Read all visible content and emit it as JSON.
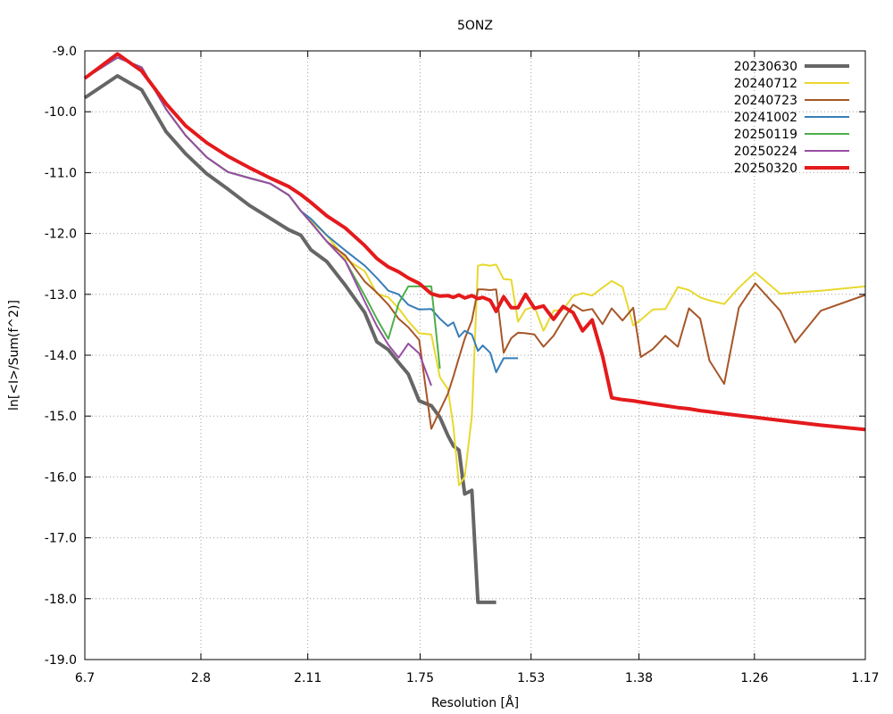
{
  "chart_data": {
    "type": "line",
    "title": "5ONZ",
    "xlabel": "Resolution [Å]",
    "ylabel": "ln[<I>/Sum(f^2)]",
    "x_unit": "1/d^2 (Å^-2)",
    "xlim": [
      0.0223,
      0.7305
    ],
    "ylim": [
      -19.0,
      -9.0
    ],
    "x_ticks": [
      {
        "label": "6.7",
        "value": 0.0223
      },
      {
        "label": "2.8",
        "value": 0.1276
      },
      {
        "label": "2.11",
        "value": 0.2246
      },
      {
        "label": "1.75",
        "value": 0.3265
      },
      {
        "label": "1.53",
        "value": 0.4272
      },
      {
        "label": "1.38",
        "value": 0.5251
      },
      {
        "label": "1.26",
        "value": 0.6299
      },
      {
        "label": "1.17",
        "value": 0.7305
      }
    ],
    "y_ticks": [
      "-9.0",
      "-10.0",
      "-11.0",
      "-12.0",
      "-13.0",
      "-14.0",
      "-15.0",
      "-16.0",
      "-17.0",
      "-18.0",
      "-19.0"
    ],
    "grid": true,
    "legend_position": "top-right",
    "series": [
      {
        "name": "20230630",
        "color": "#666666",
        "width": 4,
        "x": [
          0.0223,
          0.0519,
          0.0738,
          0.0961,
          0.1138,
          0.133,
          0.152,
          0.1716,
          0.1905,
          0.2074,
          0.2183,
          0.2275,
          0.2418,
          0.2587,
          0.2763,
          0.2873,
          0.2977,
          0.307,
          0.3158,
          0.3257,
          0.3367,
          0.3445,
          0.3518,
          0.3567,
          0.3618,
          0.367,
          0.3735,
          0.379,
          0.3834,
          0.3902,
          0.3955
        ],
        "values": [
          -9.77,
          -9.41,
          -9.64,
          -10.33,
          -10.69,
          -11.02,
          -11.27,
          -11.54,
          -11.75,
          -11.94,
          -12.03,
          -12.27,
          -12.46,
          -12.85,
          -13.3,
          -13.78,
          -13.91,
          -14.12,
          -14.31,
          -14.75,
          -14.83,
          -15.02,
          -15.32,
          -15.49,
          -15.56,
          -16.28,
          -16.22,
          -18.06,
          -18.06,
          -18.06,
          -18.06
        ]
      },
      {
        "name": "20240712",
        "color": "#e8d82f",
        "width": 2,
        "x": [
          0.0223,
          0.0519,
          0.0738,
          0.0961,
          0.1138,
          0.133,
          0.152,
          0.1716,
          0.1905,
          0.2074,
          0.2183,
          0.2275,
          0.2418,
          0.2587,
          0.2763,
          0.2873,
          0.2977,
          0.307,
          0.3158,
          0.3257,
          0.3367,
          0.3445,
          0.3518,
          0.3567,
          0.3618,
          0.367,
          0.3735,
          0.379,
          0.3834,
          0.3902,
          0.3955,
          0.4023,
          0.4092,
          0.4154,
          0.4222,
          0.4303,
          0.4385,
          0.4476,
          0.4563,
          0.4654,
          0.474,
          0.4826,
          0.492,
          0.5004,
          0.5102,
          0.5199,
          0.5268,
          0.5377,
          0.5491,
          0.5604,
          0.5705,
          0.5807,
          0.5891,
          0.6025,
          0.6158,
          0.6307,
          0.6533,
          0.6668,
          0.6901,
          0.7305
        ],
        "values": [
          -9.45,
          -9.11,
          -9.27,
          -9.96,
          -10.39,
          -10.75,
          -10.99,
          -11.09,
          -11.18,
          -11.37,
          -11.63,
          -11.79,
          -12.03,
          -12.41,
          -12.62,
          -12.99,
          -13.05,
          -13.23,
          -13.44,
          -13.64,
          -13.66,
          -14.36,
          -14.56,
          -15.17,
          -16.14,
          -16.0,
          -15.0,
          -12.53,
          -12.51,
          -12.53,
          -12.51,
          -12.75,
          -12.76,
          -13.45,
          -13.25,
          -13.2,
          -13.6,
          -13.27,
          -13.25,
          -13.03,
          -12.98,
          -13.02,
          -12.89,
          -12.78,
          -12.88,
          -13.51,
          -13.42,
          -13.25,
          -13.24,
          -12.88,
          -12.93,
          -13.05,
          -13.1,
          -13.16,
          -12.89,
          -12.64,
          -12.99,
          -12.97,
          -12.94,
          -12.87
        ]
      },
      {
        "name": "20240723",
        "color": "#a65628",
        "width": 2,
        "x": [
          0.0223,
          0.0519,
          0.0738,
          0.0961,
          0.1138,
          0.133,
          0.152,
          0.1716,
          0.1905,
          0.2074,
          0.2183,
          0.2275,
          0.2418,
          0.2587,
          0.2763,
          0.2873,
          0.2977,
          0.307,
          0.3158,
          0.3257,
          0.3367,
          0.3445,
          0.3518,
          0.3567,
          0.3618,
          0.367,
          0.3735,
          0.379,
          0.3834,
          0.3902,
          0.3955,
          0.4023,
          0.4092,
          0.4154,
          0.4222,
          0.4303,
          0.4385,
          0.4476,
          0.4563,
          0.4654,
          0.474,
          0.4826,
          0.492,
          0.5004,
          0.5102,
          0.5199,
          0.5268,
          0.5377,
          0.5491,
          0.5604,
          0.5705,
          0.5807,
          0.5891,
          0.6025,
          0.6158,
          0.6307,
          0.6533,
          0.6668,
          0.6901,
          0.7305
        ],
        "values": [
          -9.45,
          -9.11,
          -9.27,
          -9.96,
          -10.39,
          -10.75,
          -10.99,
          -11.09,
          -11.18,
          -11.37,
          -11.63,
          -11.82,
          -12.13,
          -12.36,
          -12.79,
          -12.97,
          -13.17,
          -13.4,
          -13.54,
          -13.75,
          -15.21,
          -14.91,
          -14.63,
          -14.35,
          -14.04,
          -13.73,
          -13.43,
          -12.92,
          -12.92,
          -12.93,
          -12.92,
          -13.96,
          -13.72,
          -13.63,
          -13.64,
          -13.66,
          -13.86,
          -13.68,
          -13.42,
          -13.17,
          -13.27,
          -13.24,
          -13.49,
          -13.23,
          -13.43,
          -13.22,
          -14.03,
          -13.9,
          -13.68,
          -13.86,
          -13.23,
          -13.4,
          -14.09,
          -14.47,
          -13.22,
          -12.82,
          -13.27,
          -13.79,
          -13.27,
          -13.01
        ]
      },
      {
        "name": "20241002",
        "color": "#377eb8",
        "width": 2,
        "x": [
          0.0223,
          0.0519,
          0.0738,
          0.0961,
          0.1138,
          0.133,
          0.152,
          0.1716,
          0.1905,
          0.2074,
          0.2183,
          0.2275,
          0.2418,
          0.2587,
          0.2763,
          0.2873,
          0.2977,
          0.307,
          0.3158,
          0.3257,
          0.3367,
          0.3445,
          0.3518,
          0.3567,
          0.3618,
          0.367,
          0.3735,
          0.379,
          0.3834,
          0.3902,
          0.3955,
          0.4023,
          0.4092,
          0.4154
        ],
        "values": [
          -9.45,
          -9.11,
          -9.27,
          -9.96,
          -10.39,
          -10.75,
          -10.99,
          -11.09,
          -11.18,
          -11.37,
          -11.63,
          -11.76,
          -12.03,
          -12.28,
          -12.53,
          -12.73,
          -12.94,
          -13.0,
          -13.17,
          -13.25,
          -13.24,
          -13.4,
          -13.52,
          -13.46,
          -13.7,
          -13.6,
          -13.66,
          -13.93,
          -13.84,
          -13.96,
          -14.28,
          -14.05,
          -14.05,
          -14.05
        ]
      },
      {
        "name": "20250119",
        "color": "#4daf4a",
        "width": 2,
        "x": [
          0.0223,
          0.0519,
          0.0738,
          0.0961,
          0.1138,
          0.133,
          0.152,
          0.1716,
          0.1905,
          0.2074,
          0.2183,
          0.2275,
          0.2418,
          0.2587,
          0.2763,
          0.2873,
          0.2977,
          0.307,
          0.3158,
          0.3257,
          0.3367,
          0.3445
        ],
        "values": [
          -9.45,
          -9.11,
          -9.27,
          -9.96,
          -10.39,
          -10.75,
          -10.99,
          -11.09,
          -11.18,
          -11.37,
          -11.63,
          -11.82,
          -12.13,
          -12.45,
          -13.02,
          -13.4,
          -13.73,
          -13.15,
          -12.87,
          -12.87,
          -12.87,
          -14.22
        ]
      },
      {
        "name": "20250224",
        "color": "#984ea3",
        "width": 2,
        "x": [
          0.0223,
          0.0519,
          0.0738,
          0.0961,
          0.1138,
          0.133,
          0.152,
          0.1716,
          0.1905,
          0.2074,
          0.2183,
          0.2275,
          0.2418,
          0.2587,
          0.2763,
          0.2873,
          0.2977,
          0.307,
          0.3158,
          0.3257,
          0.3367
        ],
        "values": [
          -9.45,
          -9.11,
          -9.27,
          -9.96,
          -10.39,
          -10.75,
          -10.99,
          -11.09,
          -11.18,
          -11.37,
          -11.63,
          -11.82,
          -12.13,
          -12.45,
          -13.12,
          -13.52,
          -13.83,
          -14.04,
          -13.81,
          -13.97,
          -14.5
        ]
      },
      {
        "name": "20250320",
        "color": "#e41a1c",
        "width": 4,
        "x": [
          0.0223,
          0.0519,
          0.0738,
          0.0961,
          0.1138,
          0.133,
          0.152,
          0.1716,
          0.1905,
          0.2074,
          0.2183,
          0.2275,
          0.2418,
          0.2587,
          0.2763,
          0.2873,
          0.2977,
          0.307,
          0.3158,
          0.3257,
          0.3367,
          0.3445,
          0.3518,
          0.3567,
          0.3618,
          0.367,
          0.3735,
          0.379,
          0.3834,
          0.3902,
          0.3955,
          0.4023,
          0.4092,
          0.4154,
          0.4222,
          0.4303,
          0.4385,
          0.4476,
          0.4563,
          0.4654,
          0.474,
          0.4826,
          0.492,
          0.5004,
          0.5102,
          0.5199,
          0.5268,
          0.5377,
          0.5491,
          0.5604,
          0.5705,
          0.5807,
          0.5891,
          0.6025,
          0.6158,
          0.6307,
          0.6533,
          0.6668,
          0.6901,
          0.7305
        ],
        "values": [
          -9.45,
          -9.05,
          -9.33,
          -9.87,
          -10.23,
          -10.51,
          -10.73,
          -10.92,
          -11.09,
          -11.23,
          -11.36,
          -11.49,
          -11.71,
          -11.91,
          -12.2,
          -12.41,
          -12.55,
          -12.63,
          -12.73,
          -12.82,
          -12.99,
          -13.03,
          -13.02,
          -13.05,
          -13.01,
          -13.06,
          -13.02,
          -13.07,
          -13.05,
          -13.1,
          -13.28,
          -13.04,
          -13.22,
          -13.22,
          -13.0,
          -13.23,
          -13.19,
          -13.41,
          -13.2,
          -13.3,
          -13.6,
          -13.42,
          -14.01,
          -14.7,
          -14.73,
          -14.75,
          -14.77,
          -14.8,
          -14.83,
          -14.86,
          -14.88,
          -14.91,
          -14.93,
          -14.96,
          -14.99,
          -15.02,
          -15.07,
          -15.1,
          -15.15,
          -15.22
        ]
      }
    ]
  }
}
